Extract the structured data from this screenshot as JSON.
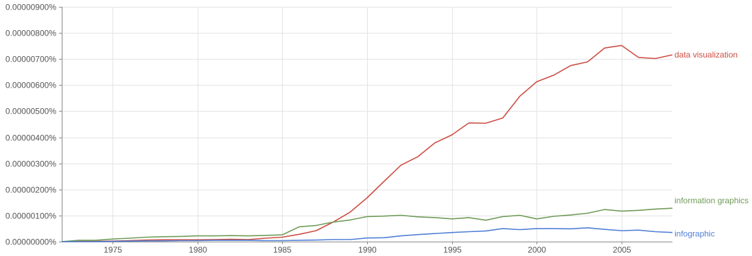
{
  "chart_data": {
    "type": "line",
    "title": "",
    "xlabel": "",
    "ylabel": "",
    "x": [
      1972,
      1973,
      1974,
      1975,
      1976,
      1977,
      1978,
      1979,
      1980,
      1981,
      1982,
      1983,
      1984,
      1985,
      1986,
      1987,
      1988,
      1989,
      1990,
      1991,
      1992,
      1993,
      1994,
      1995,
      1996,
      1997,
      1998,
      1999,
      2000,
      2001,
      2002,
      2003,
      2004,
      2005,
      2006,
      2007,
      2008
    ],
    "xlim": [
      1972,
      2008
    ],
    "ylim": [
      0,
      9e-06
    ],
    "grid": true,
    "legend": "series labels at right end of lines",
    "x_ticks": [
      1975,
      1980,
      1985,
      1990,
      1995,
      2000,
      2005
    ],
    "x_tick_labels": [
      "1975",
      "1980",
      "1985",
      "1990",
      "1995",
      "2000",
      "2005"
    ],
    "y_ticks": [
      0,
      1e-06,
      2e-06,
      3e-06,
      4e-06,
      5e-06,
      6e-06,
      7e-06,
      8e-06,
      9e-06
    ],
    "y_tick_labels": [
      "0.00000000%",
      "0.00000100%",
      "0.00000200%",
      "0.00000300%",
      "0.00000400%",
      "0.00000500%",
      "0.00000600%",
      "0.00000700%",
      "0.00000800%",
      "0.00000900%"
    ],
    "series": [
      {
        "name": "data visualization",
        "color": "#cc4c43",
        "values": [
          0,
          1e-08,
          1e-08,
          2e-08,
          4e-08,
          6e-08,
          7e-08,
          7e-08,
          7e-08,
          8e-08,
          9e-08,
          8e-08,
          1.3e-07,
          1.7e-07,
          2.8e-07,
          4.2e-07,
          7.5e-07,
          1.13e-06,
          1.68e-06,
          2.31e-06,
          2.93e-06,
          3.26e-06,
          3.79e-06,
          4.09e-06,
          4.55e-06,
          4.54e-06,
          4.74e-06,
          5.57e-06,
          6.13e-06,
          6.38e-06,
          6.75e-06,
          6.89e-06,
          7.42e-06,
          7.52e-06,
          7.06e-06,
          7.02e-06,
          7.16e-06
        ]
      },
      {
        "name": "information graphics",
        "color": "#6e9b57",
        "values": [
          0,
          5e-08,
          5e-08,
          1e-07,
          1.3e-07,
          1.7e-07,
          1.9e-07,
          2e-07,
          2.2e-07,
          2.2e-07,
          2.3e-07,
          2.2e-07,
          2.4e-07,
          2.6e-07,
          5.7e-07,
          6.2e-07,
          7.5e-07,
          8.3e-07,
          9.6e-07,
          9.8e-07,
          1.01e-06,
          9.5e-07,
          9.2e-07,
          8.7e-07,
          9.2e-07,
          8.2e-07,
          9.6e-07,
          1.01e-06,
          8.7e-07,
          9.7e-07,
          1.02e-06,
          1.09e-06,
          1.23e-06,
          1.17e-06,
          1.2e-06,
          1.25e-06,
          1.28e-06
        ]
      },
      {
        "name": "infographic",
        "color": "#4f7ed4",
        "values": [
          0,
          0,
          0,
          1e-08,
          2e-08,
          3e-08,
          3e-08,
          4e-08,
          4e-08,
          5e-08,
          5e-08,
          5e-08,
          4e-08,
          4e-08,
          5e-08,
          6e-08,
          8e-08,
          8e-08,
          1.4e-07,
          1.5e-07,
          2.2e-07,
          2.7e-07,
          3.1e-07,
          3.5e-07,
          3.8e-07,
          4.1e-07,
          5e-07,
          4.6e-07,
          5e-07,
          5e-07,
          4.9e-07,
          5.3e-07,
          4.7e-07,
          4.2e-07,
          4.4e-07,
          3.8e-07,
          3.5e-07
        ]
      }
    ]
  }
}
